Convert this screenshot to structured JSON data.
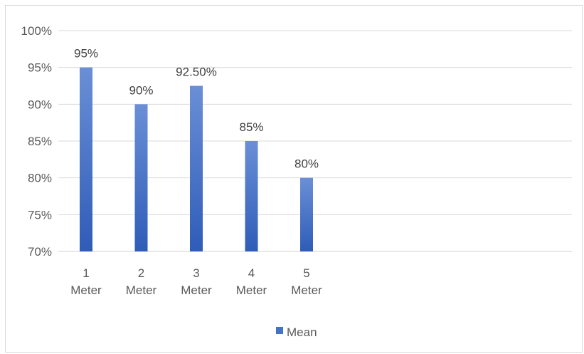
{
  "chart_data": {
    "type": "bar",
    "title": "",
    "xlabel": "",
    "ylabel": "",
    "categories": [
      "1 Meter",
      "2 Meter",
      "3 Meter",
      "4 Meter",
      "5 Meter"
    ],
    "category_lines": [
      [
        "1",
        "Meter"
      ],
      [
        "2",
        "Meter"
      ],
      [
        "3",
        "Meter"
      ],
      [
        "4",
        "Meter"
      ],
      [
        "5",
        "Meter"
      ]
    ],
    "series": [
      {
        "name": "Mean",
        "values": [
          95,
          90,
          92.5,
          85,
          80
        ],
        "labels": [
          "95%",
          "90%",
          "92.50%",
          "85%",
          "80%"
        ]
      }
    ],
    "ylim": [
      70,
      100
    ],
    "yticks": [
      70,
      75,
      80,
      85,
      90,
      95,
      100
    ],
    "ytick_labels": [
      "70%",
      "75%",
      "80%",
      "85%",
      "90%",
      "95%",
      "100%"
    ],
    "grid": true,
    "legend_position": "bottom",
    "bar_color": "#4472c4"
  }
}
